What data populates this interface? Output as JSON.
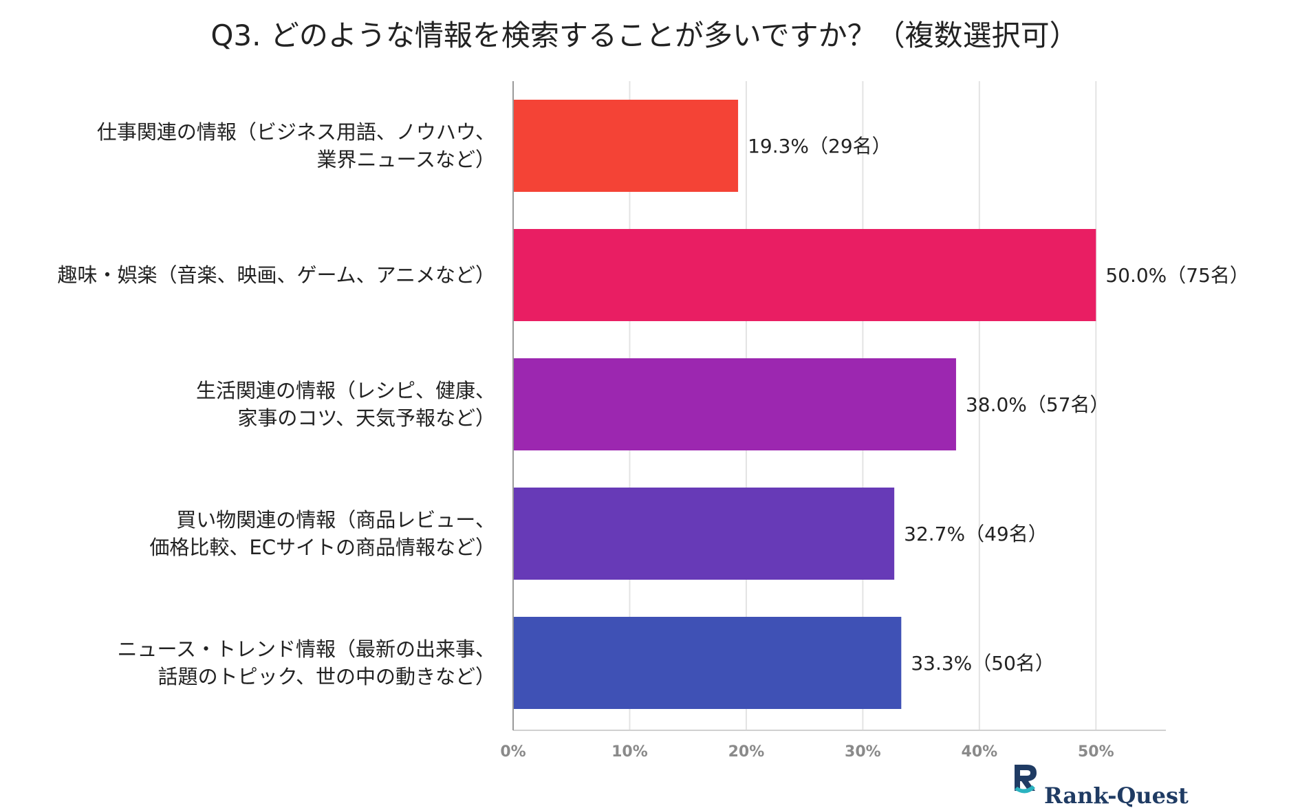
{
  "chart_data": {
    "type": "bar",
    "orientation": "horizontal",
    "title": "Q3. どのような情報を検索することが多いですか？（複数選択可）",
    "categories": [
      [
        "仕事関連の情報（ビジネス用語、ノウハウ、",
        "業界ニュースなど）"
      ],
      [
        "趣味・娯楽（音楽、映画、ゲーム、アニメなど）"
      ],
      [
        "生活関連の情報（レシピ、健康、",
        "家事のコツ、天気予報など）"
      ],
      [
        "買い物関連の情報（商品レビュー、",
        "価格比較、ECサイトの商品情報など）"
      ],
      [
        "ニュース・トレンド情報（最新の出来事、",
        "話題のトピック、世の中の動きなど）"
      ]
    ],
    "values": [
      19.3,
      50.0,
      38.0,
      32.7,
      33.3
    ],
    "value_labels": [
      "19.3%（29名）",
      "50.0%（75名）",
      "38.0%（57名）",
      "32.7%（49名）",
      "33.3%（50名）"
    ],
    "colors": [
      "#f44336",
      "#e91e63",
      "#9c27b0",
      "#673ab7",
      "#3f51b5"
    ],
    "xlim": [
      0,
      56
    ],
    "ticks": [
      0,
      10,
      20,
      30,
      40,
      50
    ],
    "tick_labels": [
      "0%",
      "10%",
      "20%",
      "30%",
      "40%",
      "50%"
    ],
    "grid": true,
    "xlabel": "",
    "ylabel": ""
  },
  "brand": {
    "name_part1": "Rank-",
    "name_part2": "Quest",
    "logo_icon": "rank-quest-r-icon",
    "logo_color": "#1f3b63",
    "logo_accent": "#2bb3c0"
  }
}
